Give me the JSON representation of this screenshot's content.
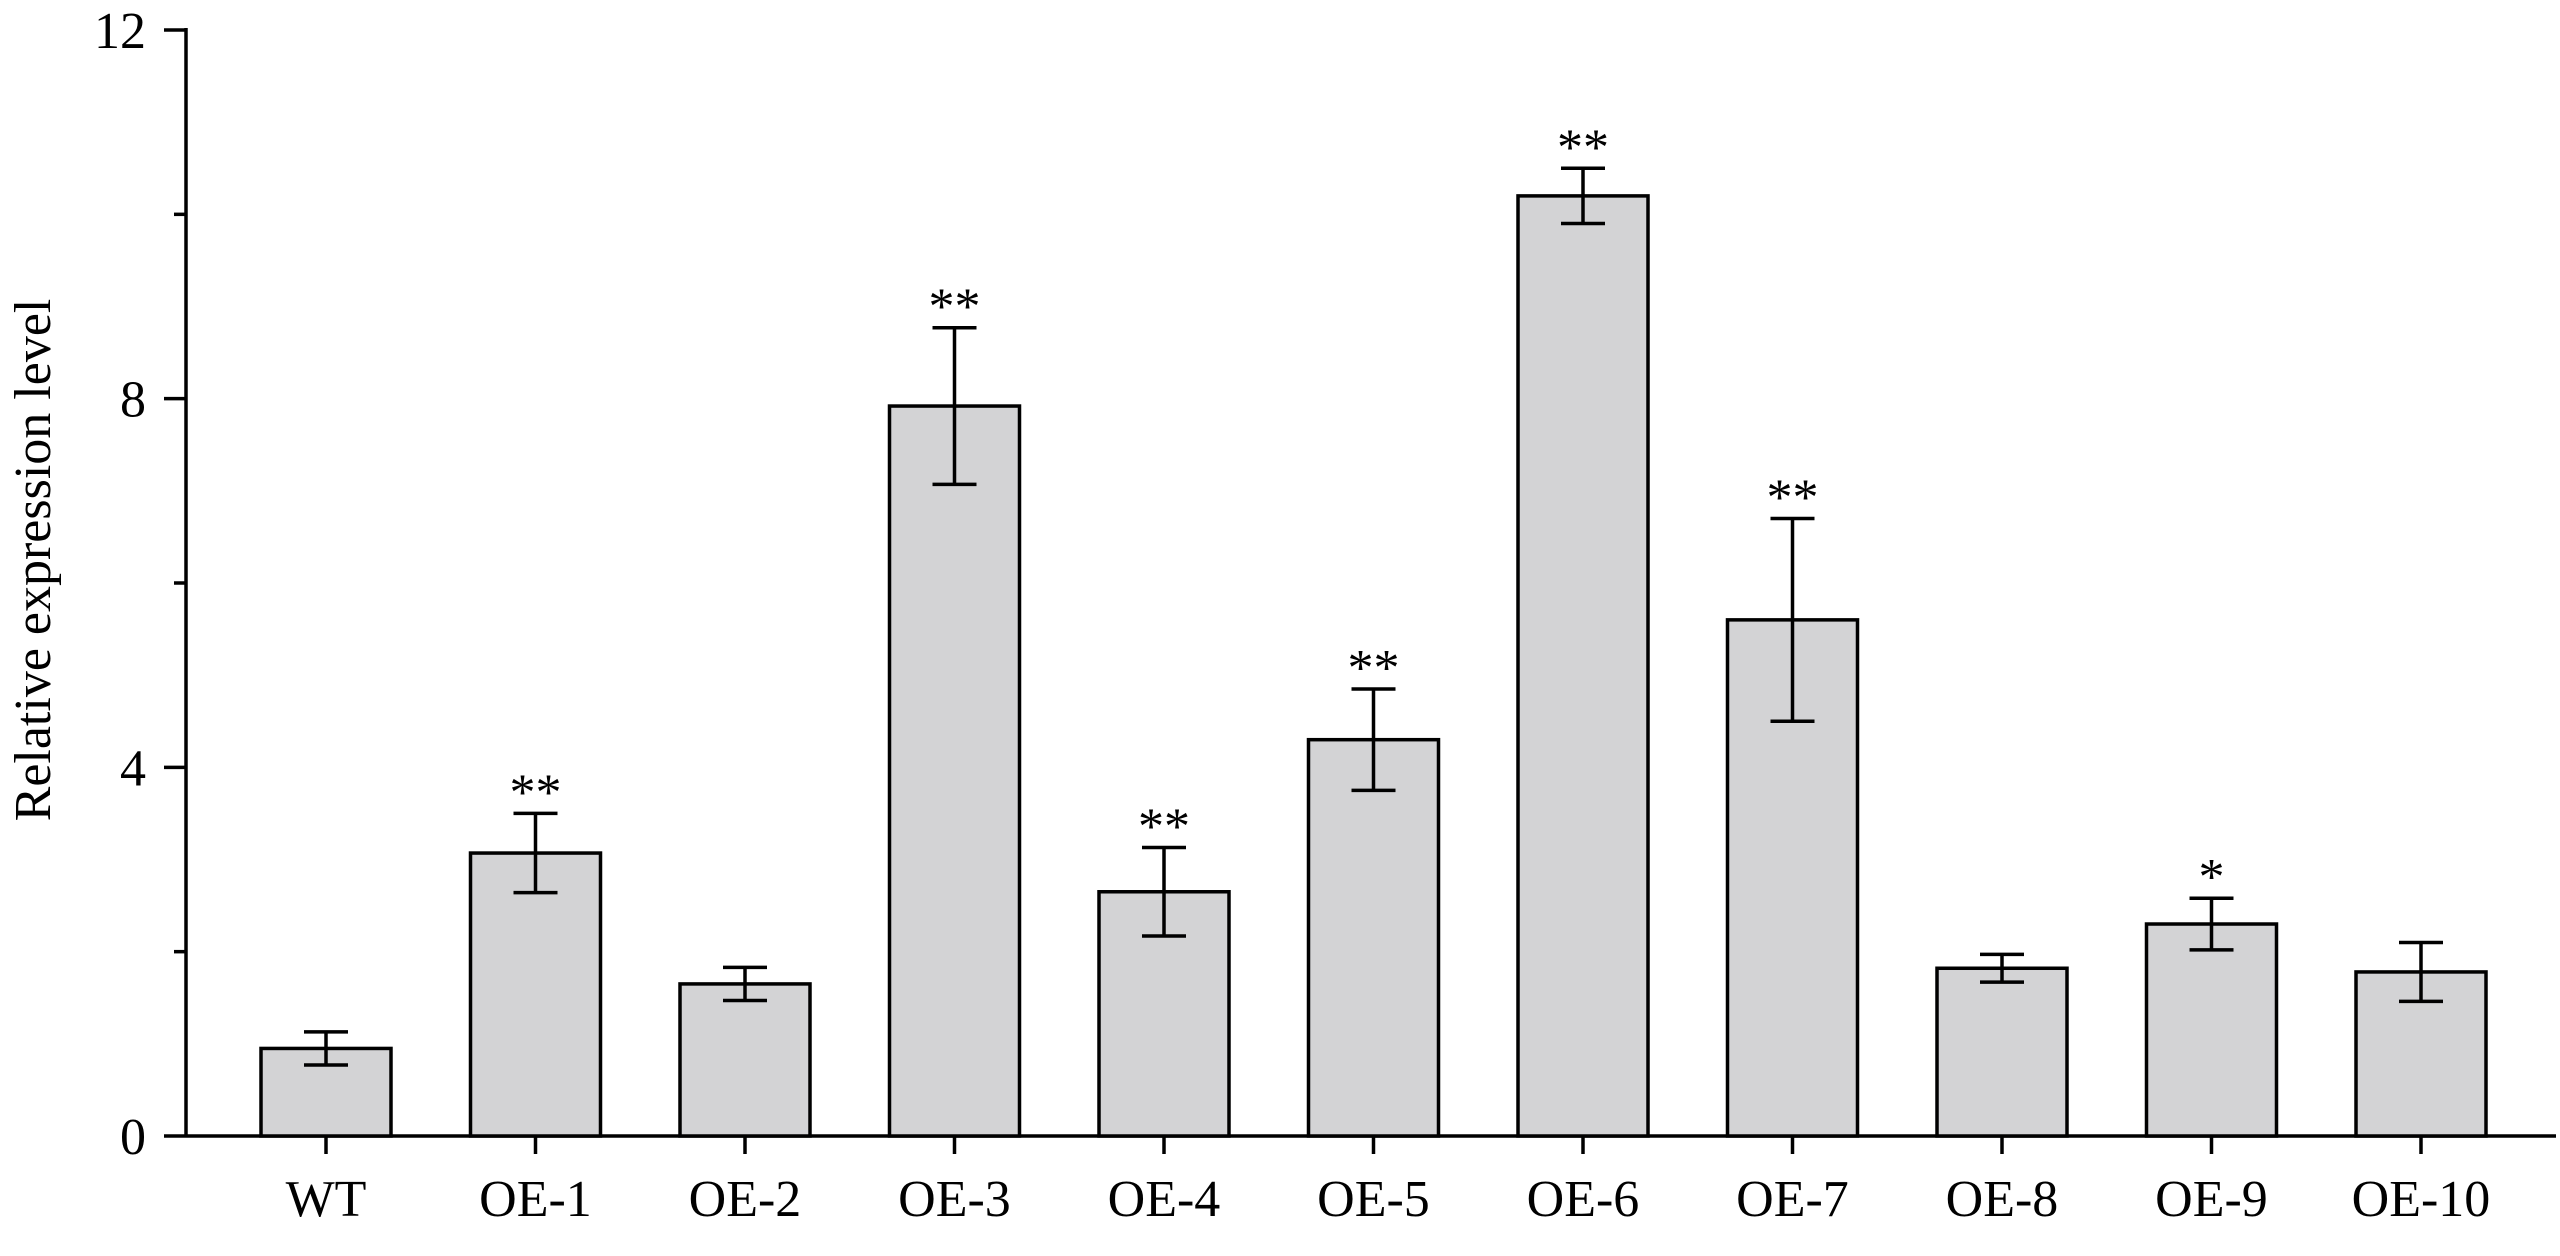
{
  "chart_data": {
    "type": "bar",
    "title": "",
    "xlabel": "",
    "ylabel": "Relative expression level",
    "ylim": [
      0,
      12
    ],
    "yticks": [
      0,
      4,
      8,
      12
    ],
    "categories": [
      "WT",
      "OE-1",
      "OE-2",
      "OE-3",
      "OE-4",
      "OE-5",
      "OE-6",
      "OE-7",
      "OE-8",
      "OE-9",
      "OE-10"
    ],
    "values": [
      0.95,
      3.07,
      1.65,
      7.92,
      2.65,
      4.3,
      10.2,
      5.6,
      1.82,
      2.3,
      1.78
    ],
    "errors": [
      0.18,
      0.43,
      0.18,
      0.85,
      0.48,
      0.55,
      0.3,
      1.1,
      0.15,
      0.28,
      0.32
    ],
    "significance": [
      "",
      "**",
      "",
      "**",
      "**",
      "**",
      "**",
      "**",
      "",
      "*",
      ""
    ],
    "grid": false,
    "colors": {
      "bar_fill": "#d3d3d5",
      "stroke": "#000000"
    }
  }
}
